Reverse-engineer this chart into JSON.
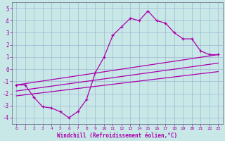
{
  "xlabel": "Windchill (Refroidissement éolien,°C)",
  "bg_color": "#c8e8e8",
  "line_color": "#aa00aa",
  "grid_color": "#99aacc",
  "xlim": [
    -0.5,
    23.5
  ],
  "ylim": [
    -4.5,
    5.5
  ],
  "xticks": [
    0,
    1,
    2,
    3,
    4,
    5,
    6,
    7,
    8,
    9,
    10,
    11,
    12,
    13,
    14,
    15,
    16,
    17,
    18,
    19,
    20,
    21,
    22,
    23
  ],
  "yticks": [
    -4,
    -3,
    -2,
    -1,
    0,
    1,
    2,
    3,
    4,
    5
  ],
  "curve_x": [
    0,
    1,
    2,
    3,
    4,
    5,
    6,
    7,
    8,
    9,
    10,
    11,
    12,
    13,
    14,
    15,
    16,
    17,
    18,
    19,
    20,
    21,
    22,
    23
  ],
  "curve_y": [
    -1.3,
    -1.3,
    -2.3,
    -3.1,
    -3.2,
    -3.5,
    -4.0,
    -3.5,
    -2.5,
    -0.3,
    1.0,
    2.8,
    3.5,
    4.2,
    4.0,
    4.8,
    4.0,
    3.8,
    3.0,
    2.5,
    2.5,
    1.5,
    1.2,
    1.2
  ],
  "line1_x": [
    0,
    23
  ],
  "line1_y": [
    -1.3,
    1.2
  ],
  "line2_x": [
    0,
    23
  ],
  "line2_y": [
    -1.8,
    0.5
  ],
  "line3_x": [
    0,
    23
  ],
  "line3_y": [
    -2.2,
    -0.2
  ]
}
